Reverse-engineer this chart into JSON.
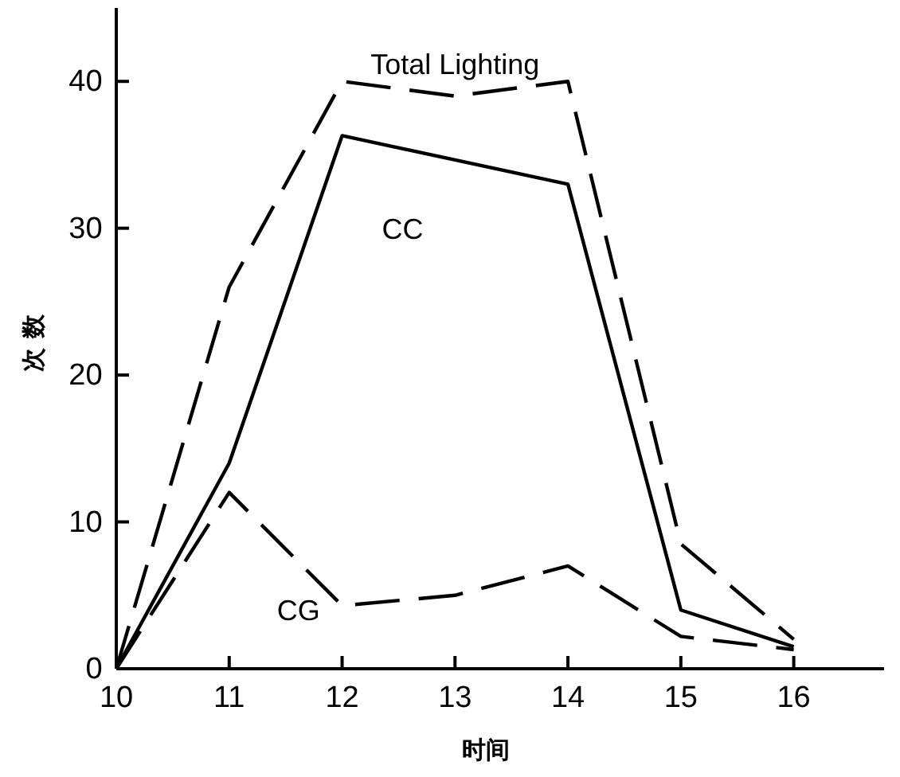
{
  "chart_data": {
    "type": "line",
    "xlabel": "时间",
    "ylabel": "次数",
    "xlim": [
      10,
      16.8
    ],
    "ylim": [
      0,
      45
    ],
    "xticks": [
      10,
      11,
      12,
      13,
      14,
      15,
      16
    ],
    "yticks": [
      0,
      10,
      20,
      30,
      40
    ],
    "grid": false,
    "legend": false,
    "marker": "none",
    "series": [
      {
        "name": "Total Lighting",
        "color": "#000000",
        "line_style": "dashed",
        "x": [
          10,
          11,
          12,
          13,
          14,
          15,
          16
        ],
        "values": [
          0,
          26,
          40,
          39,
          40,
          8.5,
          2
        ]
      },
      {
        "name": "CC",
        "color": "#000000",
        "line_style": "solid",
        "x": [
          10,
          11,
          12,
          14,
          15,
          16
        ],
        "values": [
          0,
          14,
          36.3,
          33,
          4,
          1.5
        ]
      },
      {
        "name": "CG",
        "color": "#000000",
        "line_style": "dashed",
        "x": [
          10,
          11,
          12,
          13,
          14,
          15,
          16
        ],
        "values": [
          0,
          12,
          4.3,
          5,
          7,
          2.2,
          1.3
        ]
      }
    ]
  }
}
